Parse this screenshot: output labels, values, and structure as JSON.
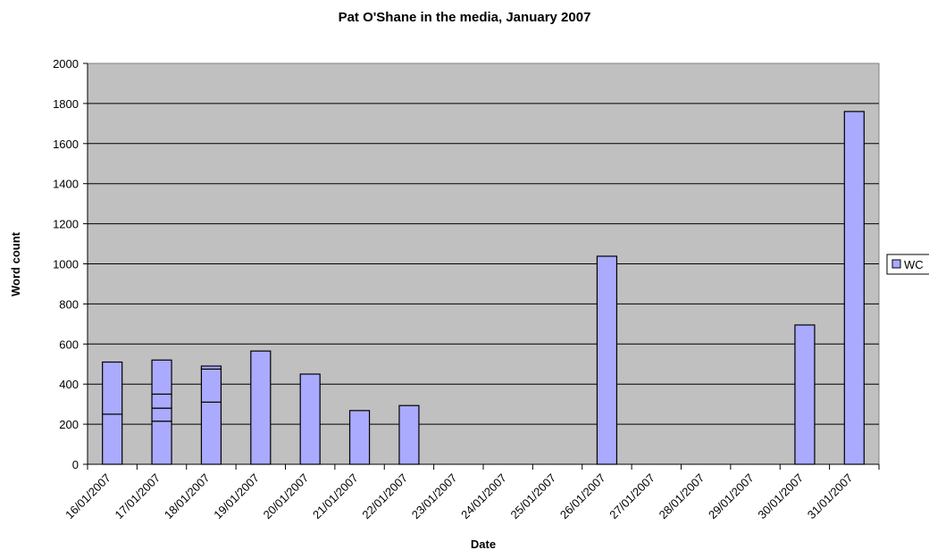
{
  "chart_data": {
    "type": "bar",
    "stacked": true,
    "title": "Pat O'Shane in the media, January 2007",
    "xlabel": "Date",
    "ylabel": "Word count",
    "ylim": [
      0,
      2000
    ],
    "yticks": [
      0,
      200,
      400,
      600,
      800,
      1000,
      1200,
      1400,
      1600,
      1800,
      2000
    ],
    "grid": true,
    "legend_position": "right",
    "categories": [
      "16/01/2007",
      "17/01/2007",
      "18/01/2007",
      "19/01/2007",
      "20/01/2007",
      "21/01/2007",
      "22/01/2007",
      "23/01/2007",
      "24/01/2007",
      "25/01/2007",
      "26/01/2007",
      "27/01/2007",
      "28/01/2007",
      "29/01/2007",
      "30/01/2007",
      "31/01/2007"
    ],
    "series": [
      {
        "name": "WC",
        "color": "#aaaaff",
        "segments": [
          [
            250,
            260
          ],
          [
            215,
            65,
            70,
            170
          ],
          [
            310,
            165,
            15
          ],
          [
            565
          ],
          [
            450
          ],
          [
            268
          ],
          [
            293
          ],
          [],
          [],
          [],
          [
            1038
          ],
          [],
          [],
          [],
          [
            695
          ],
          [
            1760
          ]
        ],
        "values": [
          510,
          520,
          490,
          565,
          450,
          268,
          293,
          0,
          0,
          0,
          1038,
          0,
          0,
          0,
          695,
          1760
        ]
      }
    ]
  }
}
